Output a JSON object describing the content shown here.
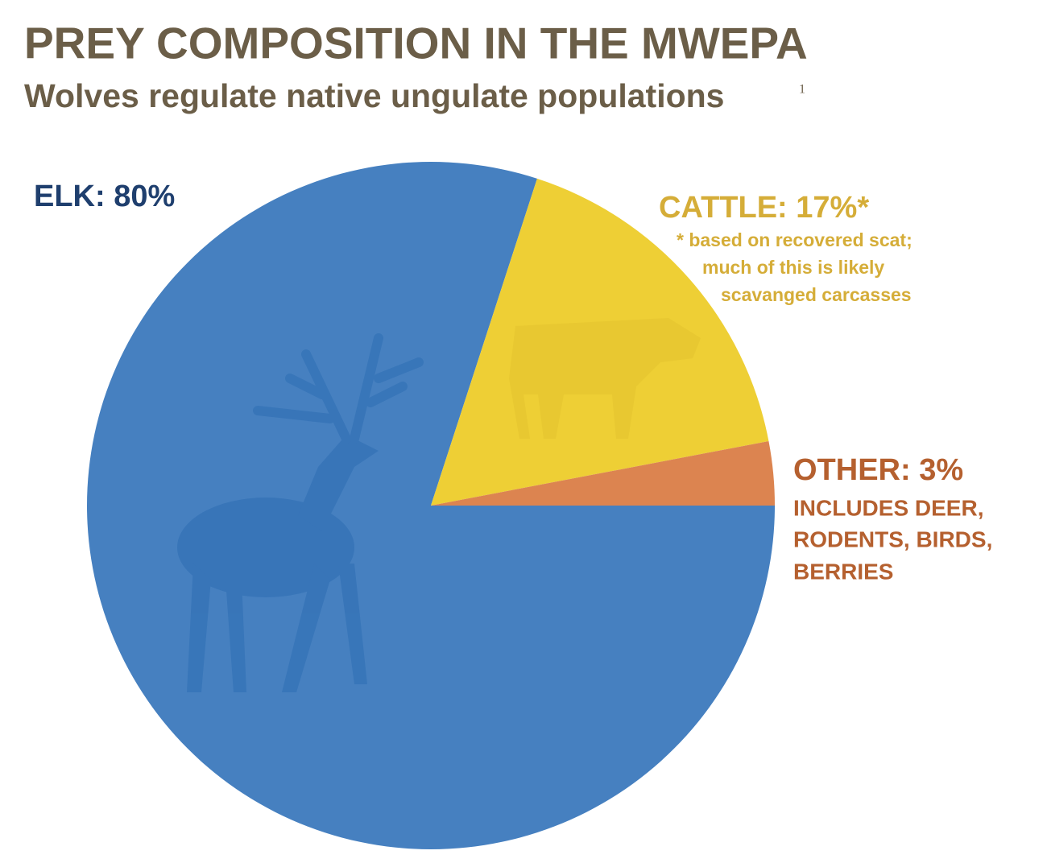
{
  "chart_data": {
    "type": "pie",
    "title": "PREY COMPOSITION IN THE MWEPA",
    "subtitle": "Wolves regulate native ungulate populations",
    "subtitle_footnote": "1",
    "values": [
      80,
      17,
      3
    ],
    "value_labels": [
      "ELK: 80%",
      "CATTLE: 17%*",
      "OTHER: 3%"
    ],
    "colors": [
      "#4680c0",
      "#eecf35",
      "#dc8450"
    ],
    "label_colors": [
      "#1f3f6e",
      "#d5ad38",
      "#b5602f"
    ],
    "annotations": [
      [
        "* based on recovered scat;",
        "much of this is likely",
        "scavanged carcasses"
      ],
      [
        "INCLUDES DEER,",
        "RODENTS, BIRDS,",
        "BERRIES"
      ]
    ]
  }
}
